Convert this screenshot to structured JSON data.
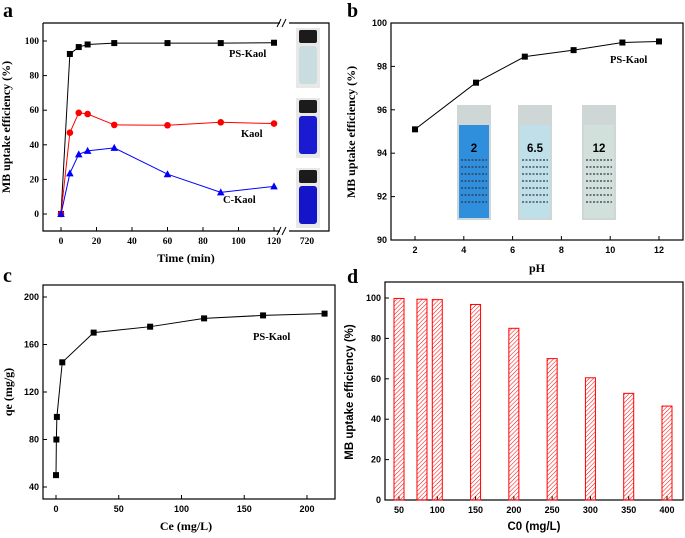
{
  "panel_labels": [
    "a",
    "b",
    "c",
    "d"
  ],
  "chart_data": [
    {
      "panel": "a",
      "type": "line",
      "xlabel": "Time (min)",
      "ylabel": "MB uptake efficiency (%)",
      "xlim": [
        -10,
        720
      ],
      "x_break": [
        120,
        720
      ],
      "ylim": [
        -10,
        110
      ],
      "xticks": [
        "0",
        "20",
        "40",
        "60",
        "80",
        "100",
        "120"
      ],
      "xtick_after_break": "720",
      "yticks": [
        "0",
        "20",
        "40",
        "60",
        "80",
        "100"
      ],
      "x": [
        0,
        5,
        10,
        15,
        30,
        60,
        90,
        120
      ],
      "series": [
        {
          "name": "PS-Kaol",
          "color": "#000000",
          "marker": "square",
          "values": [
            0,
            92.5,
            96.5,
            98,
            98.8,
            98.8,
            98.8,
            99
          ]
        },
        {
          "name": "Kaol",
          "color": "#ff0000",
          "marker": "circle",
          "values": [
            0,
            47,
            58.5,
            57.8,
            51.5,
            51.3,
            53,
            52.3
          ]
        },
        {
          "name": "C-Kaol",
          "color": "#0000ff",
          "marker": "triangle",
          "values": [
            0,
            23.5,
            34.5,
            36.5,
            38.2,
            23,
            12.5,
            16
          ]
        }
      ],
      "vial_colors": [
        "#c9dde0",
        "#1a1ad0",
        "#1414c8"
      ]
    },
    {
      "panel": "b",
      "type": "line",
      "xlabel": "pH",
      "ylabel": "MB uptake efficiency (%)",
      "xlim": [
        1,
        13
      ],
      "ylim": [
        90,
        100
      ],
      "xticks": [
        "2",
        "4",
        "6",
        "8",
        "10",
        "12"
      ],
      "yticks": [
        "90",
        "92",
        "94",
        "96",
        "98",
        "100"
      ],
      "series": [
        {
          "name": "PS-Kaol",
          "color": "#000000",
          "marker": "square",
          "x": [
            2,
            4.5,
            6.5,
            8.5,
            10.5,
            12
          ],
          "values": [
            95.1,
            97.25,
            98.45,
            98.75,
            99.1,
            99.15
          ]
        }
      ],
      "cuvettes": [
        {
          "label": "2",
          "color": "#2f8fdc"
        },
        {
          "label": "6.5",
          "color": "#bfe0e8"
        },
        {
          "label": "12",
          "color": "#d2e0dc"
        }
      ]
    },
    {
      "panel": "c",
      "type": "line",
      "xlabel": "Ce (mg/L)",
      "ylabel": "qe (mg/g)",
      "xlim": [
        -10,
        240
      ],
      "ylim": [
        30,
        210
      ],
      "xticks": [
        "0",
        "50",
        "100",
        "150",
        "200"
      ],
      "yticks": [
        "40",
        "80",
        "120",
        "160",
        "200"
      ],
      "series": [
        {
          "name": "PS-Kaol",
          "color": "#000000",
          "marker": "square",
          "x": [
            0,
            0.3,
            0.7,
            5,
            30,
            75,
            118,
            165,
            214
          ],
          "values": [
            50,
            80,
            99,
            145,
            170,
            175,
            182,
            184.5,
            186
          ]
        }
      ]
    },
    {
      "panel": "d",
      "type": "bar",
      "xlabel": "C0 (mg/L)",
      "ylabel": "MB uptake efficiency (%)",
      "xlim": [
        30,
        420
      ],
      "ylim": [
        0,
        108
      ],
      "xticks": [
        "50",
        "100",
        "150",
        "200",
        "250",
        "300",
        "350",
        "400"
      ],
      "yticks": [
        "0",
        "20",
        "40",
        "60",
        "80",
        "100"
      ],
      "x": [
        50,
        80,
        100,
        150,
        200,
        250,
        300,
        350,
        400
      ],
      "values": [
        99.8,
        99.4,
        99.2,
        96.8,
        85,
        70,
        60.5,
        52.8,
        46.5
      ],
      "color": "#ff0000"
    }
  ]
}
